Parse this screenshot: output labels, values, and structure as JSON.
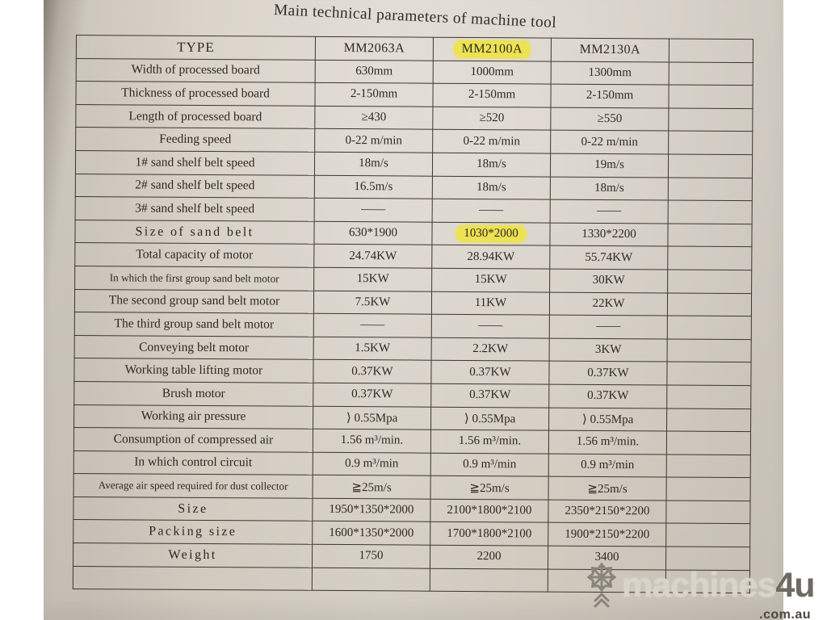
{
  "title": "Main technical parameters of machine tool",
  "table": {
    "type_header": "TYPE",
    "models": [
      "MM2063A",
      "MM2100A",
      "MM2130A"
    ],
    "highlighted_model_index": 1,
    "rows": [
      {
        "label": "Width of processed board",
        "values": [
          "630mm",
          "1000mm",
          "1300mm"
        ]
      },
      {
        "label": "Thickness of processed board",
        "values": [
          "2-150mm",
          "2-150mm",
          "2-150mm"
        ]
      },
      {
        "label": "Length of processed board",
        "values": [
          "≥430",
          "≥520",
          "≥550"
        ]
      },
      {
        "label": "Feeding speed",
        "values": [
          "0-22 m/min",
          "0-22 m/min",
          "0-22 m/min"
        ]
      },
      {
        "label": "1# sand shelf belt speed",
        "values": [
          "18m/s",
          "18m/s",
          "19m/s"
        ]
      },
      {
        "label": "2# sand shelf belt speed",
        "values": [
          "16.5m/s",
          "18m/s",
          "18m/s"
        ]
      },
      {
        "label": "3# sand shelf belt speed",
        "values": [
          "——",
          "——",
          "——"
        ]
      },
      {
        "label": "Size of sand belt",
        "values": [
          "630*1900",
          "1030*2000",
          "1330*2200"
        ],
        "highlight_value_index": 1
      },
      {
        "label": "Total capacity of motor",
        "values": [
          "24.74KW",
          "28.94KW",
          "55.74KW"
        ]
      },
      {
        "label": "In which the first group sand belt motor",
        "values": [
          "15KW",
          "15KW",
          "30KW"
        ]
      },
      {
        "label": "The second group sand belt motor",
        "values": [
          "7.5KW",
          "11KW",
          "22KW"
        ]
      },
      {
        "label": "The third group sand belt motor",
        "values": [
          "——",
          "——",
          "——"
        ]
      },
      {
        "label": "Conveying belt motor",
        "values": [
          "1.5KW",
          "2.2KW",
          "3KW"
        ]
      },
      {
        "label": "Working table lifting motor",
        "values": [
          "0.37KW",
          "0.37KW",
          "0.37KW"
        ]
      },
      {
        "label": "Brush motor",
        "values": [
          "0.37KW",
          "0.37KW",
          "0.37KW"
        ]
      },
      {
        "label": "Working air pressure",
        "values": [
          "⟩ 0.55Mpa",
          "⟩ 0.55Mpa",
          "⟩ 0.55Mpa"
        ]
      },
      {
        "label": "Consumption of compressed air",
        "values": [
          "1.56 m³/min.",
          "1.56 m³/min.",
          "1.56 m³/min."
        ]
      },
      {
        "label": "In which control circuit",
        "values": [
          "0.9 m³/min",
          "0.9 m³/min",
          "0.9 m³/min"
        ]
      },
      {
        "label": "Average air speed required for dust collector",
        "values": [
          "≧25m/s",
          "≧25m/s",
          "≧25m/s"
        ]
      },
      {
        "label": "Size",
        "values": [
          "1950*1350*2000",
          "2100*1800*2100",
          "2350*2150*2200"
        ]
      },
      {
        "label": "Packing size",
        "values": [
          "1600*1350*2000",
          "1700*1800*2100",
          "1900*2150*2200"
        ]
      },
      {
        "label": "Weight",
        "values": [
          "1750",
          "2200",
          "3400"
        ]
      }
    ]
  },
  "watermark": {
    "brand": "machines",
    "brand_suffix": "4u",
    "domain": ".com.au"
  },
  "colors": {
    "paper": "#d7d1c7",
    "highlight": "#ece253",
    "table_line": "#3c362e",
    "ink": "#2d2822"
  }
}
